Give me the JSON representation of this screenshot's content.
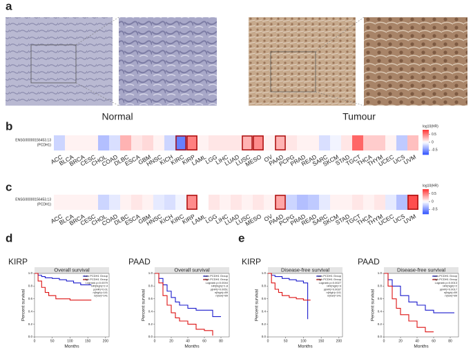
{
  "figure": {
    "panel_labels": [
      "a",
      "b",
      "c",
      "d",
      "e"
    ],
    "normal_label": "Normal",
    "tumour_label": "Tumour"
  },
  "chart_data": [
    {
      "type": "heatmap",
      "row_label": [
        "ENSG00000156453.13",
        "(PCDH1)"
      ],
      "legend_title": "log10(HR)",
      "clim": [
        -0.8,
        0.8
      ],
      "cticks": [
        0.5,
        0,
        -0.5
      ],
      "colors": {
        "low": "#3355ff",
        "mid": "#ffffff",
        "high": "#ff3333"
      },
      "categories": [
        "ACC",
        "BLCA",
        "BRCA",
        "CESC",
        "CHOL",
        "COAD",
        "DLBC",
        "ESCA",
        "GBM",
        "HNSC",
        "KICH",
        "KIRC",
        "KIRP",
        "LAML",
        "LGG",
        "LIHC",
        "LUAD",
        "LUSC",
        "MESO",
        "OV",
        "PAAD",
        "PCPG",
        "PRAD",
        "READ",
        "SARC",
        "SKCM",
        "STAD",
        "TGCT",
        "THCA",
        "THYM",
        "UCEC",
        "UCS",
        "UVM"
      ],
      "values": [
        -0.2,
        0.05,
        0.05,
        0.05,
        -0.3,
        -0.15,
        0.3,
        0.1,
        0.15,
        0.05,
        -0.2,
        -0.6,
        0.5,
        0.05,
        0.1,
        0.1,
        0.1,
        0.3,
        0.45,
        0.05,
        0.3,
        0.1,
        0.05,
        0.05,
        -0.15,
        -0.05,
        0.1,
        0.6,
        0.2,
        0.2,
        0.05,
        -0.25,
        0.25
      ],
      "highlighted": [
        11,
        12,
        17,
        18,
        20
      ]
    },
    {
      "type": "heatmap",
      "row_label": [
        "ENSG00000156453.13",
        "(PCDH1)"
      ],
      "legend_title": "log10(HR)",
      "clim": [
        -0.8,
        0.8
      ],
      "cticks": [
        0.5,
        0,
        -0.5
      ],
      "colors": {
        "low": "#3355ff",
        "mid": "#ffffff",
        "high": "#ff3333"
      },
      "categories": [
        "ACC",
        "BLCA",
        "BRCA",
        "CESC",
        "CHOL",
        "COAD",
        "DLBC",
        "ESCA",
        "GBM",
        "HNSC",
        "KICH",
        "KIRC",
        "KIRP",
        "LAML",
        "LGG",
        "LIHC",
        "LUAD",
        "LUSC",
        "MESO",
        "OV",
        "PAAD",
        "PCPG",
        "PRAD",
        "READ",
        "SARC",
        "SKCM",
        "STAD",
        "TGCT",
        "THCA",
        "THYM",
        "UCEC",
        "UCS",
        "UVM"
      ],
      "values": [
        0.05,
        0.05,
        0.05,
        0.05,
        -0.2,
        -0.1,
        0.05,
        0.1,
        0.05,
        -0.1,
        -0.15,
        -0.05,
        0.45,
        0,
        0.1,
        0.05,
        0.1,
        0.05,
        0.1,
        0.05,
        0.35,
        -0.2,
        -0.3,
        -0.25,
        -0.1,
        0.05,
        0.05,
        0.1,
        0.05,
        0.1,
        -0.1,
        -0.3,
        0.7
      ],
      "highlighted": [
        12,
        20,
        32
      ]
    },
    {
      "type": "line",
      "title": "KIRP",
      "subtitle": "Overall survival",
      "xlabel": "Months",
      "ylabel": "Percent survival",
      "xlim": [
        0,
        210
      ],
      "ylim": [
        0,
        1
      ],
      "xticks": [
        0,
        50,
        100,
        150,
        200
      ],
      "yticks": [
        {
          "value": 0,
          "label": "0.0"
        },
        {
          "value": 0.2,
          "label": "0.2"
        },
        {
          "value": 0.4,
          "label": "0.4"
        },
        {
          "value": 0.6,
          "label": "0.6"
        },
        {
          "value": 0.8,
          "label": "0.8"
        },
        {
          "value": 1,
          "label": "1.0"
        }
      ],
      "series": [
        {
          "name": "Low PCDH1 Group",
          "color": "#1a1acc",
          "x": [
            0,
            10,
            20,
            30,
            50,
            70,
            90,
            110,
            130,
            160
          ],
          "values": [
            1,
            0.97,
            0.95,
            0.93,
            0.92,
            0.9,
            0.88,
            0.85,
            0.82,
            0.82
          ]
        },
        {
          "name": "High PCDH1 Group",
          "color": "#dd1111",
          "x": [
            0,
            10,
            20,
            30,
            40,
            60,
            80,
            100,
            130,
            160
          ],
          "values": [
            1,
            0.88,
            0.78,
            0.7,
            0.65,
            0.6,
            0.6,
            0.58,
            0.58,
            0.58
          ]
        }
      ],
      "annotations": [
        "Logrank p=0.0079",
        "HR(high)=2.4",
        "p(HR)=0.01",
        "n(high)=141",
        "n(low)=141"
      ]
    },
    {
      "type": "line",
      "title": "PAAD",
      "subtitle": "Overall survival",
      "xlabel": "Months",
      "ylabel": "Percent survival",
      "xlim": [
        0,
        90
      ],
      "ylim": [
        0,
        1
      ],
      "xticks": [
        0,
        20,
        40,
        60,
        80
      ],
      "yticks": [
        {
          "value": 0,
          "label": "0.0"
        },
        {
          "value": 0.2,
          "label": "0.2"
        },
        {
          "value": 0.4,
          "label": "0.4"
        },
        {
          "value": 0.6,
          "label": "0.6"
        },
        {
          "value": 0.8,
          "label": "0.8"
        },
        {
          "value": 1,
          "label": "1.0"
        }
      ],
      "series": [
        {
          "name": "Low PCDH1 Group",
          "color": "#1a1acc",
          "x": [
            0,
            5,
            10,
            15,
            20,
            25,
            30,
            40,
            50,
            60,
            70,
            80
          ],
          "values": [
            1,
            0.92,
            0.82,
            0.72,
            0.62,
            0.55,
            0.5,
            0.45,
            0.42,
            0.42,
            0.32,
            0.32
          ]
        },
        {
          "name": "High PCDH1 Group",
          "color": "#dd1111",
          "x": [
            0,
            5,
            10,
            15,
            20,
            25,
            30,
            40,
            50,
            60,
            70
          ],
          "values": [
            1,
            0.85,
            0.65,
            0.5,
            0.38,
            0.3,
            0.25,
            0.2,
            0.12,
            0.1,
            0.02
          ]
        }
      ],
      "annotations": [
        "Logrank p=0.0044",
        "HR(high)=1.8",
        "p(HR)=0.0051",
        "n(high)=89",
        "n(low)=89"
      ]
    },
    {
      "type": "line",
      "title": "KIRP",
      "subtitle": "Disease-free survival",
      "xlabel": "Months",
      "ylabel": "Percent survival",
      "xlim": [
        0,
        210
      ],
      "ylim": [
        0,
        1
      ],
      "xticks": [
        0,
        50,
        100,
        150,
        200
      ],
      "yticks": [
        {
          "value": 0,
          "label": "0.0"
        },
        {
          "value": 0.2,
          "label": "0.2"
        },
        {
          "value": 0.4,
          "label": "0.4"
        },
        {
          "value": 0.6,
          "label": "0.6"
        },
        {
          "value": 0.8,
          "label": "0.8"
        },
        {
          "value": 1,
          "label": "1.0"
        }
      ],
      "series": [
        {
          "name": "Low PCDH1 Group",
          "color": "#1a1acc",
          "x": [
            0,
            10,
            20,
            40,
            60,
            80,
            100,
            110,
            112
          ],
          "values": [
            1,
            0.97,
            0.95,
            0.92,
            0.9,
            0.88,
            0.85,
            0.85,
            0.28
          ]
        },
        {
          "name": "High PCDH1 Group",
          "color": "#dd1111",
          "x": [
            0,
            10,
            20,
            30,
            40,
            60,
            80,
            100,
            120
          ],
          "values": [
            1,
            0.85,
            0.75,
            0.7,
            0.65,
            0.62,
            0.6,
            0.58,
            0.58
          ]
        }
      ],
      "annotations": [
        "Logrank p=0.0027",
        "HR(high)=3",
        "p(HR)=0.0037",
        "n(high)=141",
        "n(low)=141"
      ]
    },
    {
      "type": "line",
      "title": "PAAD",
      "subtitle": "Disease-free survival",
      "xlabel": "Months",
      "ylabel": "Percent survival",
      "xlim": [
        0,
        90
      ],
      "ylim": [
        0,
        1
      ],
      "xticks": [
        0,
        20,
        40,
        60,
        80
      ],
      "yticks": [
        {
          "value": 0,
          "label": "0.0"
        },
        {
          "value": 0.2,
          "label": "0.2"
        },
        {
          "value": 0.4,
          "label": "0.4"
        },
        {
          "value": 0.6,
          "label": "0.6"
        },
        {
          "value": 0.8,
          "label": "0.8"
        },
        {
          "value": 1,
          "label": "1.0"
        }
      ],
      "series": [
        {
          "name": "Low PCDH1 Group",
          "color": "#1a1acc",
          "x": [
            0,
            5,
            10,
            20,
            30,
            40,
            50,
            60,
            70,
            85
          ],
          "values": [
            1,
            0.9,
            0.8,
            0.65,
            0.55,
            0.5,
            0.42,
            0.38,
            0.38,
            0.38
          ]
        },
        {
          "name": "High PCDH1 Group",
          "color": "#dd1111",
          "x": [
            0,
            5,
            10,
            15,
            20,
            30,
            40,
            50,
            60
          ],
          "values": [
            1,
            0.8,
            0.6,
            0.45,
            0.35,
            0.25,
            0.15,
            0.08,
            0.08
          ]
        }
      ],
      "annotations": [
        "Logrank p=0.0013",
        "HR(high)=2",
        "p(HR)=0.0017",
        "n(high)=89",
        "n(low)=89"
      ]
    }
  ]
}
